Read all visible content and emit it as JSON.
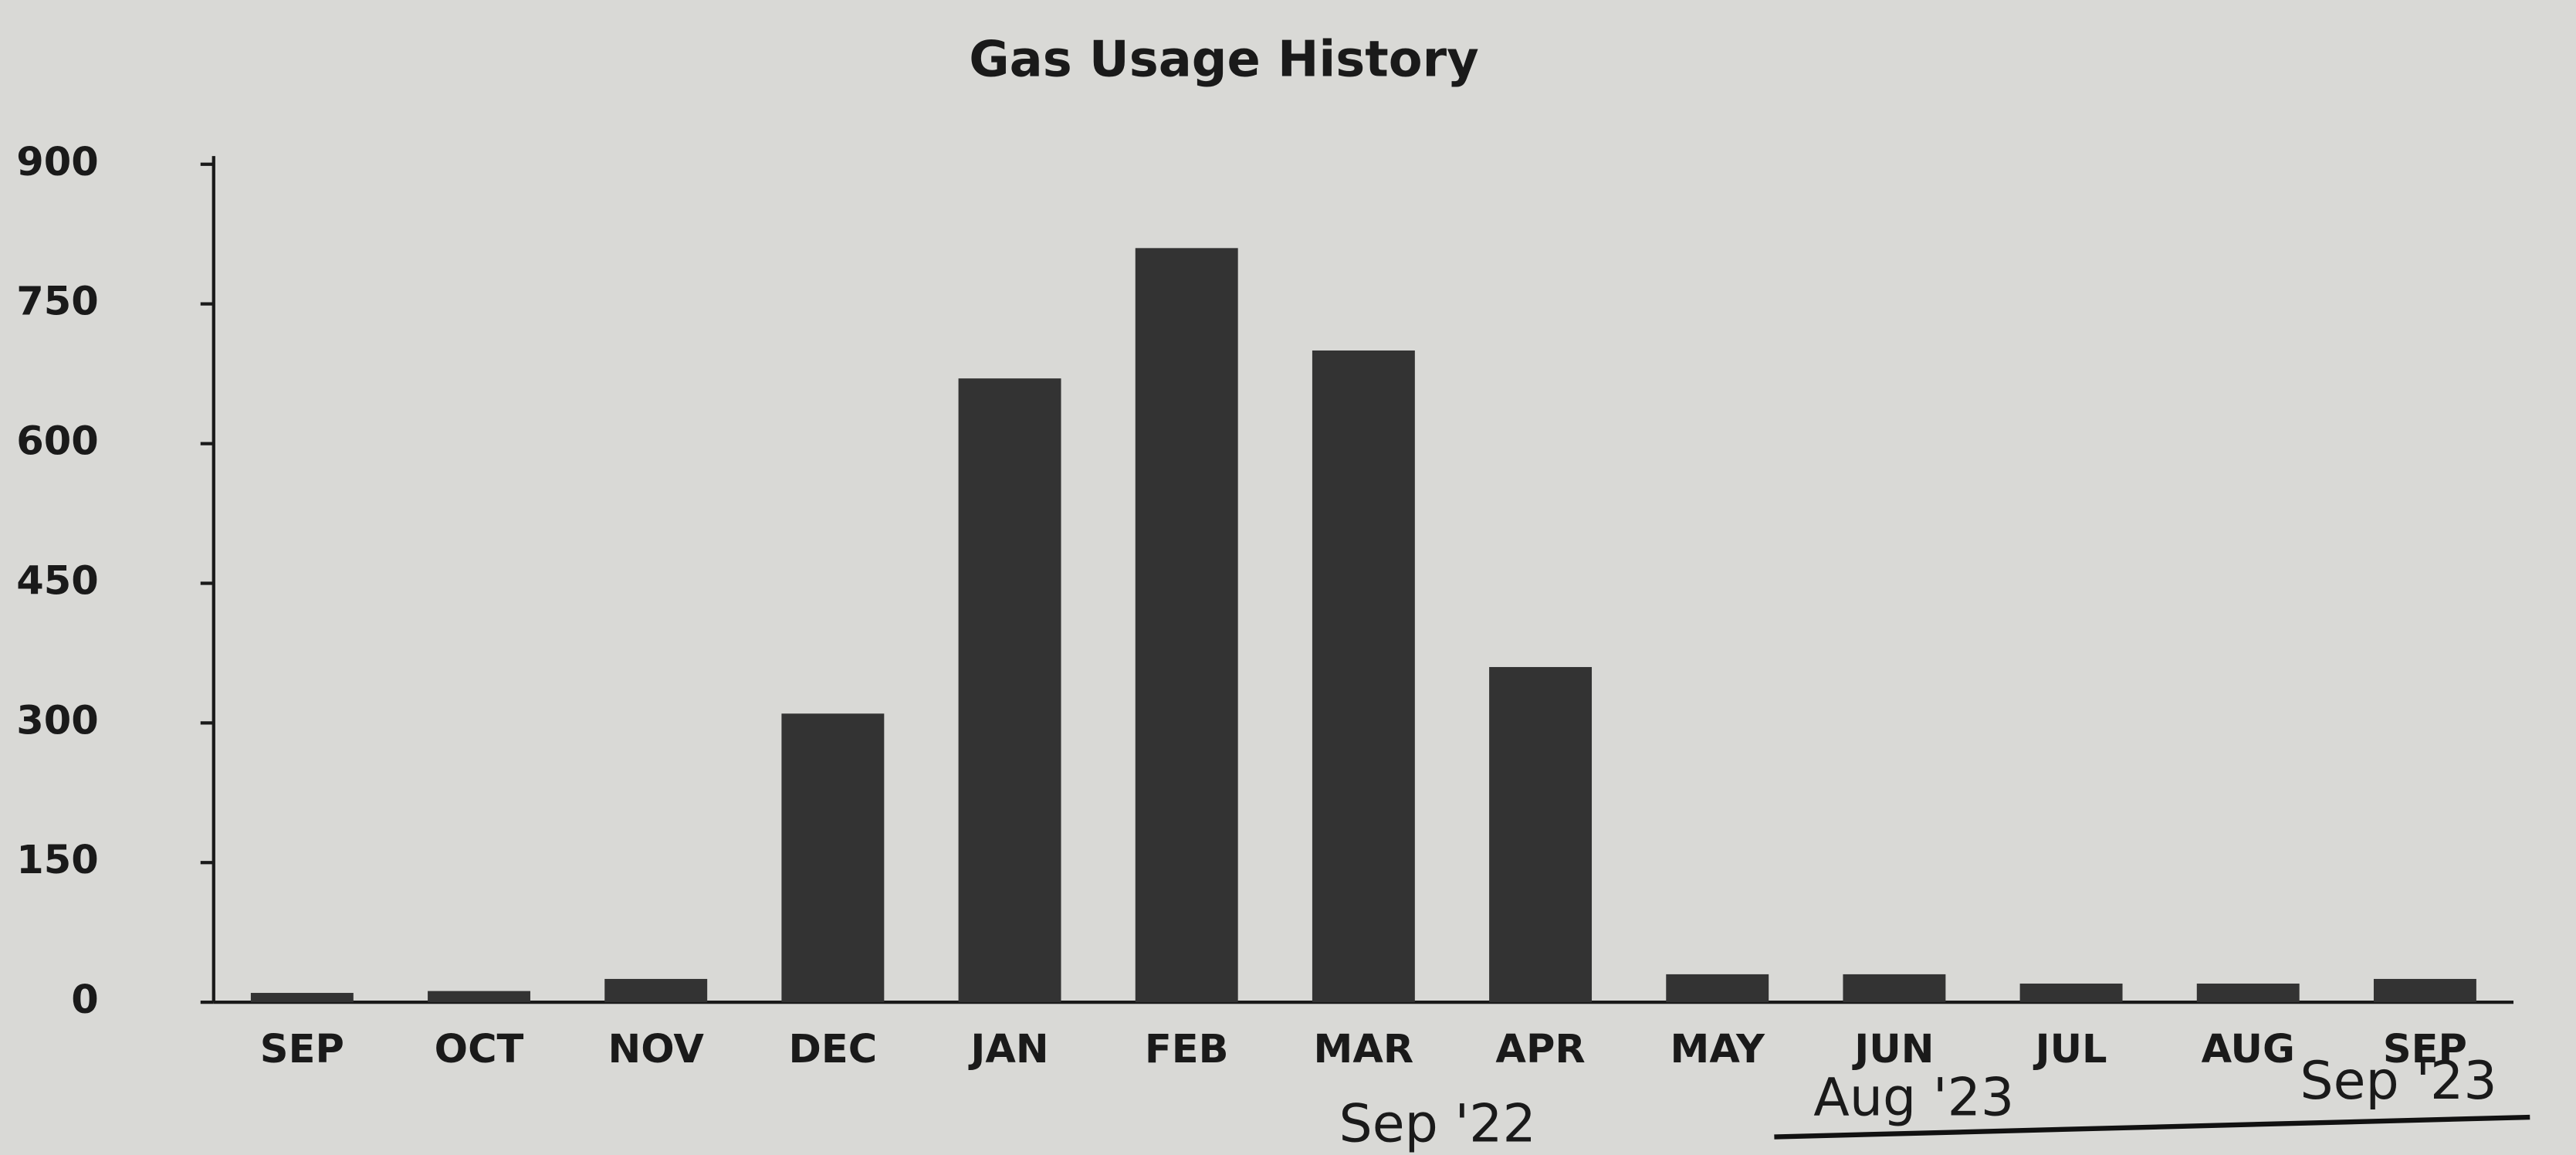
{
  "chart_data": {
    "type": "bar",
    "title": "Gas Usage History",
    "categories": [
      "SEP",
      "OCT",
      "NOV",
      "DEC",
      "JAN",
      "FEB",
      "MAR",
      "APR",
      "MAY",
      "JUN",
      "JUL",
      "AUG",
      "SEP"
    ],
    "values": [
      10,
      12,
      25,
      310,
      670,
      810,
      700,
      360,
      30,
      30,
      20,
      20,
      25
    ],
    "color": "#333333",
    "ylim": [
      0,
      900
    ],
    "yticks": [
      0,
      150,
      300,
      450,
      600,
      750,
      900
    ],
    "grid": false,
    "annotations": [
      "Sep '22",
      "Aug '23",
      "Sep '23"
    ]
  }
}
